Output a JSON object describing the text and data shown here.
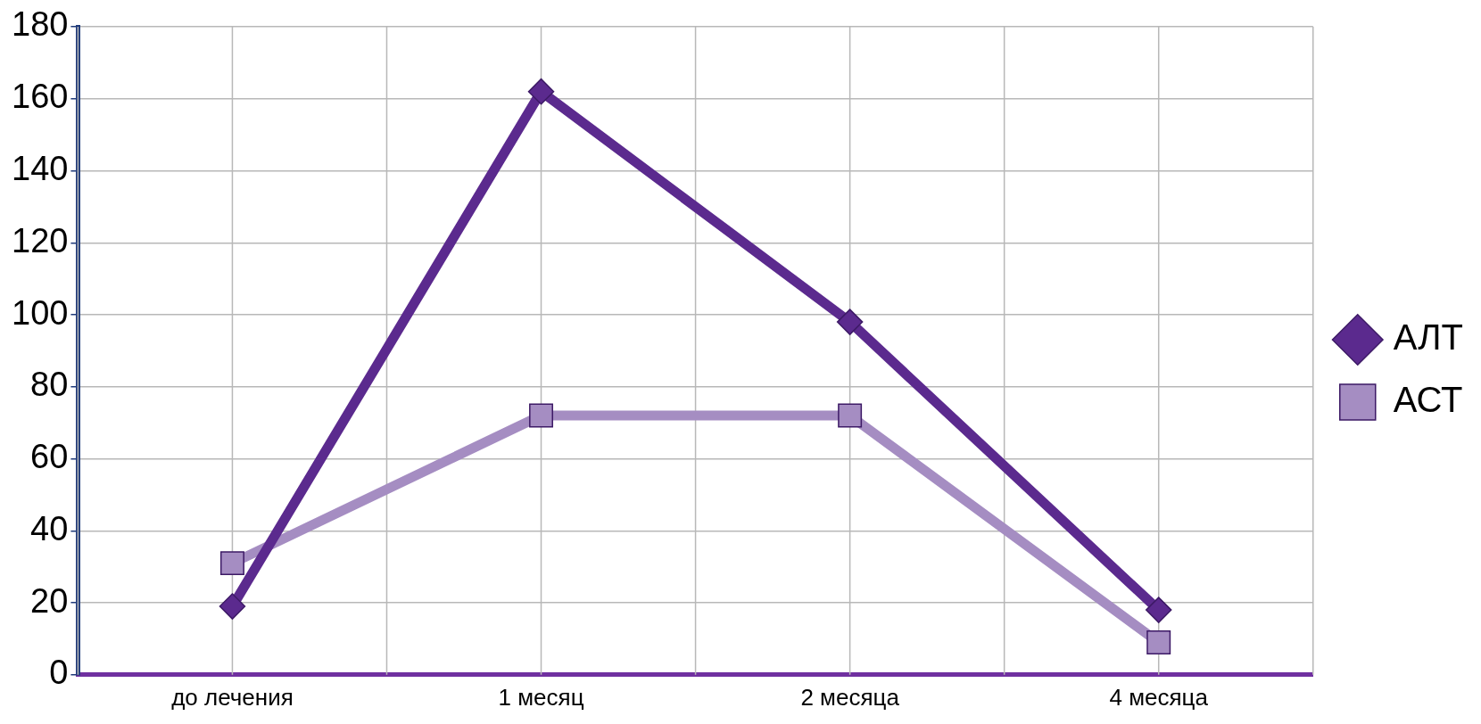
{
  "chart_data": {
    "type": "line",
    "categories": [
      "до лечения",
      "1 месяц",
      "2 месяца",
      "4 месяца"
    ],
    "series": [
      {
        "name": "АЛТ",
        "color": "#5b2a8e",
        "marker": "diamond",
        "values": [
          19,
          162,
          98,
          18
        ]
      },
      {
        "name": "АСТ",
        "color": "#a58dc2",
        "marker": "square",
        "values": [
          31,
          72,
          72,
          9
        ]
      }
    ],
    "ylim": [
      0,
      180
    ],
    "yticks": [
      0,
      20,
      40,
      60,
      80,
      100,
      120,
      140,
      160,
      180
    ],
    "grid": true,
    "legend": "right"
  }
}
